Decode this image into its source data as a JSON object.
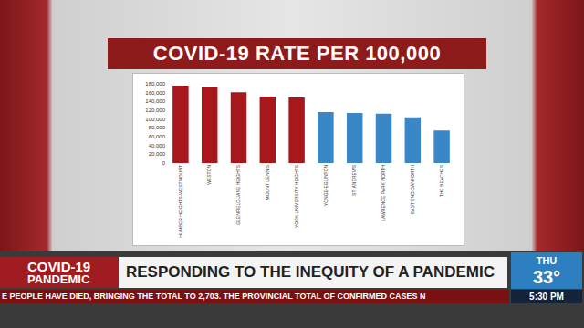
{
  "chart_data": {
    "type": "bar",
    "title": "COVID-19 RATE PER 100,000",
    "categories": [
      "HUMBER HEIGHTS-WESTMOUNT",
      "WESTON",
      "GLENFIELD-JANE HEIGHTS",
      "MOUNT DENNIS",
      "YORK UNIVERSITY HEIGHTS",
      "YONGE-EGLINTON",
      "ST. ANDREWS",
      "LAWRENCE PARK NORTH",
      "EAST END-DANFORTH",
      "THE BEACHES"
    ],
    "values": [
      176000,
      172000,
      161000,
      151000,
      149000,
      116000,
      114000,
      112000,
      104000,
      74000
    ],
    "colors": [
      "#a8171c",
      "#a8171c",
      "#a8171c",
      "#a8171c",
      "#a8171c",
      "#3a87c8",
      "#3a87c8",
      "#3a87c8",
      "#3a87c8",
      "#3a87c8"
    ],
    "ylim": [
      0,
      180000
    ],
    "yticks": [
      0,
      {
        "value": 20000,
        "label": "20,000"
      },
      {
        "value": 40000,
        "label": "40,000"
      },
      {
        "value": 60000,
        "label": "60,000"
      },
      {
        "value": 80000,
        "label": "80,000"
      },
      {
        "value": 100000,
        "label": "100,000"
      },
      {
        "value": 120000,
        "label": "120,000"
      },
      {
        "value": 140000,
        "label": "140,000"
      },
      {
        "value": 160000,
        "label": "160,000"
      },
      {
        "value": 180000,
        "label": "180,000"
      }
    ],
    "grid": false
  },
  "screen": {
    "show_label": [
      "COVID-19",
      "PANDEMIC"
    ],
    "headline": "RESPONDING TO THE INEQUITY OF A PANDEMIC",
    "weather": {
      "day": "THU",
      "temperature": "33°"
    },
    "ticker": "E PEOPLE HAVE DIED, BRINGING THE TOTAL TO 2,703. THE PROVINCIAL TOTAL OF CONFIRMED CASES N",
    "time": "5:30 PM"
  }
}
